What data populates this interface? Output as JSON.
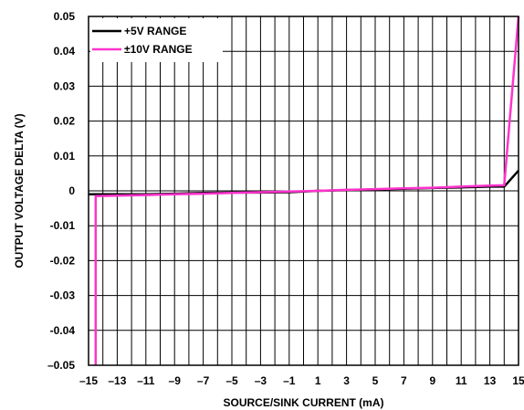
{
  "chart_data": {
    "type": "line",
    "xlabel": "SOURCE/SINK CURRENT (mA)",
    "ylabel": "OUTPUT VOLTAGE DELTA (V)",
    "xlim": [
      -15,
      15
    ],
    "ylim": [
      -0.05,
      0.05
    ],
    "xticks": [
      "–15",
      "–13",
      "–11",
      "–9",
      "–7",
      "–5",
      "–3",
      "–1",
      "1",
      "3",
      "5",
      "7",
      "9",
      "11",
      "13",
      "15"
    ],
    "xtick_values": [
      -15,
      -13,
      -11,
      -9,
      -7,
      -5,
      -3,
      -1,
      1,
      3,
      5,
      7,
      9,
      11,
      13,
      15
    ],
    "yticks": [
      "0.05",
      "0.04",
      "0.03",
      "0.02",
      "0.01",
      "0",
      "-0.01",
      "-0.02",
      "-0.03",
      "-0.04",
      "–0.05"
    ],
    "ytick_values": [
      0.05,
      0.04,
      0.03,
      0.02,
      0.01,
      0,
      -0.01,
      -0.02,
      -0.03,
      -0.04,
      -0.05
    ],
    "grid": true,
    "legend": "top-left",
    "series": [
      {
        "name": "+5V RANGE",
        "color": "#000000",
        "x": [
          -15,
          -13,
          -11,
          -9,
          -7,
          -5,
          -3,
          -1,
          0,
          1,
          3,
          5,
          7,
          9,
          11,
          13,
          14,
          15
        ],
        "y": [
          -0.001,
          -0.001,
          -0.001,
          -0.0008,
          -0.0006,
          -0.0005,
          -0.0005,
          -0.0004,
          -0.0002,
          0,
          0.0002,
          0.0004,
          0.0006,
          0.0008,
          0.001,
          0.0012,
          0.0012,
          0.0058
        ]
      },
      {
        "name": "±10V RANGE",
        "color": "#ff33cc",
        "x": [
          -14.5,
          -14.5,
          -13,
          -11,
          -9,
          -7,
          -5,
          -3,
          -1,
          1,
          3,
          5,
          7,
          9,
          11,
          13,
          14,
          15
        ],
        "y": [
          -0.05,
          -0.0015,
          -0.0014,
          -0.0012,
          -0.001,
          -0.0008,
          -0.0006,
          -0.0004,
          -0.0002,
          0,
          0.0003,
          0.0005,
          0.0007,
          0.0009,
          0.0012,
          0.0015,
          0.0016,
          0.05
        ]
      }
    ]
  }
}
